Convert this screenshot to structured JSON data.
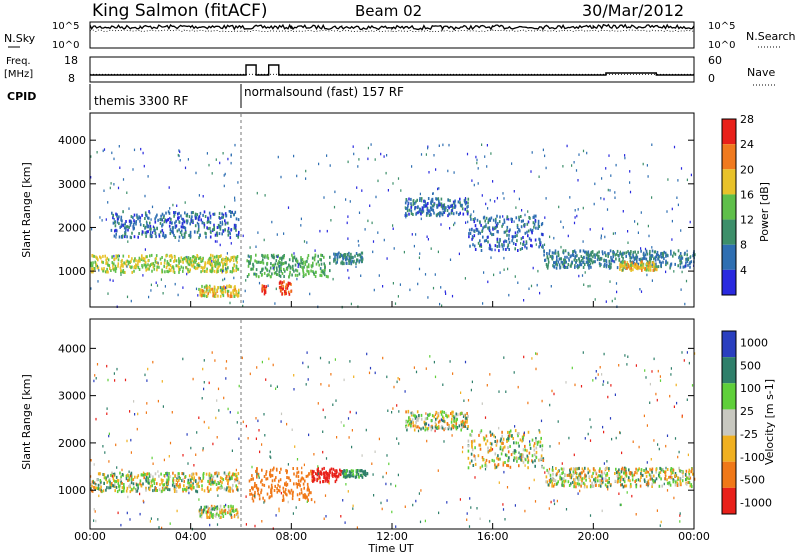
{
  "header": {
    "station": "King Salmon (fitACF)",
    "beam": "Beam 02",
    "date": "30/Mar/2012"
  },
  "top_panels": {
    "nsky_label": "N.Sky",
    "nsky_ticks": [
      "10^5",
      "10^0"
    ],
    "nsearch_label": "N.Search",
    "nsearch_ticks": [
      "10^5",
      "10^0"
    ],
    "freq_label_line1": "Freq.",
    "freq_label_line2": "[MHz]",
    "freq_ticks": [
      "18",
      "8"
    ],
    "nave_label": "Nave",
    "nave_ticks": [
      "60",
      "0"
    ],
    "cpid_label": "CPID",
    "cpid_segments": [
      {
        "label": "themis 3300 RF",
        "start_hour": 0
      },
      {
        "label": "normalsound (fast) 157 RF",
        "start_hour": 6.0
      }
    ]
  },
  "power_colorbar": {
    "label": "Power [dB]",
    "ticks": [
      "4",
      "8",
      "12",
      "16",
      "20",
      "24",
      "28"
    ],
    "colors": [
      "#2a2adf",
      "#2f6fb2",
      "#3d8f6a",
      "#5fbf4a",
      "#e8c22a",
      "#f07a1f",
      "#e8201a"
    ]
  },
  "velocity_colorbar": {
    "label": "Velocity [m s-1]",
    "ticks": [
      "1000",
      "500",
      "100",
      "25",
      "-25",
      "-100",
      "-500",
      "-1000"
    ],
    "colors": [
      "#2a3fbf",
      "#2f7f6a",
      "#5fcf3a",
      "#c8c8c0",
      "#f0b020",
      "#f07818",
      "#e8201a"
    ]
  },
  "chart_data": [
    {
      "type": "line",
      "title": "N.Sky / N.Search",
      "x_range_hours": [
        0,
        24
      ],
      "y_scale": "log",
      "ylim": [
        1,
        100000
      ],
      "series": [
        {
          "name": "N.Sky",
          "x": [
            0,
            2,
            4,
            6,
            8,
            10,
            12,
            14,
            16,
            18,
            20,
            22,
            24
          ],
          "y": [
            20000,
            20000,
            25000,
            18000,
            20000,
            18000,
            15000,
            15000,
            20000,
            20000,
            25000,
            25000,
            20000
          ]
        },
        {
          "name": "N.Search",
          "x": [
            0,
            2,
            4,
            6,
            8,
            10,
            12,
            14,
            16,
            18,
            20,
            22,
            24
          ],
          "y": [
            3000,
            3000,
            3000,
            2500,
            2500,
            2500,
            2500,
            2500,
            3000,
            3000,
            3000,
            3000,
            3000
          ]
        }
      ]
    },
    {
      "type": "line",
      "title": "Freq / Nave",
      "x_range_hours": [
        0,
        24
      ],
      "series": [
        {
          "name": "Freq.",
          "unit": "MHz",
          "x": [
            0,
            6.2,
            6.2,
            6.6,
            6.6,
            7.1,
            7.1,
            7.5,
            7.5,
            20.5,
            20.5,
            22.5,
            22.5,
            24
          ],
          "y": [
            11,
            11,
            16,
            16,
            11,
            11,
            16,
            16,
            11,
            11,
            12,
            12,
            11,
            11
          ]
        },
        {
          "name": "Nave",
          "x": [
            0,
            24
          ],
          "y": [
            20,
            20
          ]
        }
      ]
    },
    {
      "type": "heatmap",
      "title": "Power [dB]",
      "xlabel": "",
      "ylabel": "Slant Range [km]",
      "x_range_hours": [
        0,
        24
      ],
      "ylim": [
        200,
        4600
      ],
      "y_ticks": [
        1000,
        2000,
        3000,
        4000
      ],
      "bands": [
        {
          "t0": 0.0,
          "t1": 5.9,
          "r0": 1000,
          "r1": 1400,
          "power_db": 18
        },
        {
          "t0": 0.8,
          "t1": 5.9,
          "r0": 1800,
          "r1": 2400,
          "power_db": 8
        },
        {
          "t0": 4.3,
          "t1": 5.9,
          "r0": 450,
          "r1": 700,
          "power_db": 20
        },
        {
          "t0": 6.2,
          "t1": 9.5,
          "r0": 900,
          "r1": 1400,
          "power_db": 14
        },
        {
          "t0": 7.5,
          "t1": 8.0,
          "r0": 500,
          "r1": 800,
          "power_db": 26
        },
        {
          "t0": 6.8,
          "t1": 7.0,
          "r0": 500,
          "r1": 700,
          "power_db": 26
        },
        {
          "t0": 9.6,
          "t1": 10.8,
          "r0": 1200,
          "r1": 1450,
          "power_db": 10
        },
        {
          "t0": 12.5,
          "t1": 15.0,
          "r0": 2300,
          "r1": 2700,
          "power_db": 8
        },
        {
          "t0": 15.0,
          "t1": 18.0,
          "r0": 1500,
          "r1": 2300,
          "power_db": 8
        },
        {
          "t0": 18.0,
          "t1": 24.0,
          "r0": 1100,
          "r1": 1500,
          "power_db": 10
        },
        {
          "t0": 21.0,
          "t1": 22.5,
          "r0": 1050,
          "r1": 1250,
          "power_db": 20
        }
      ]
    },
    {
      "type": "heatmap",
      "title": "Velocity [m s-1]",
      "xlabel": "Time UT",
      "ylabel": "Slant Range [km]",
      "x_range_hours": [
        0,
        24
      ],
      "ylim": [
        200,
        4600
      ],
      "y_ticks": [
        1000,
        2000,
        3000,
        4000
      ],
      "x_ticks": [
        "00:00",
        "04:00",
        "08:00",
        "12:00",
        "16:00",
        "20:00",
        "00:00"
      ],
      "bands": [
        {
          "t0": 0.0,
          "t1": 5.9,
          "r0": 1000,
          "r1": 1400,
          "velocity": 0
        },
        {
          "t0": 4.3,
          "t1": 5.9,
          "r0": 450,
          "r1": 700,
          "velocity": 0
        },
        {
          "t0": 6.3,
          "t1": 8.8,
          "r0": 800,
          "r1": 1500,
          "velocity": -300
        },
        {
          "t0": 8.8,
          "t1": 10.0,
          "r0": 1200,
          "r1": 1500,
          "velocity": -700
        },
        {
          "t0": 10.0,
          "t1": 11.0,
          "r0": 1300,
          "r1": 1450,
          "velocity": 200
        },
        {
          "t0": 12.5,
          "t1": 15.0,
          "r0": 2300,
          "r1": 2700,
          "velocity": 0
        },
        {
          "t0": 15.0,
          "t1": 18.0,
          "r0": 1500,
          "r1": 2300,
          "velocity": 0
        },
        {
          "t0": 18.0,
          "t1": 24.0,
          "r0": 1100,
          "r1": 1500,
          "velocity": 0
        }
      ]
    }
  ]
}
